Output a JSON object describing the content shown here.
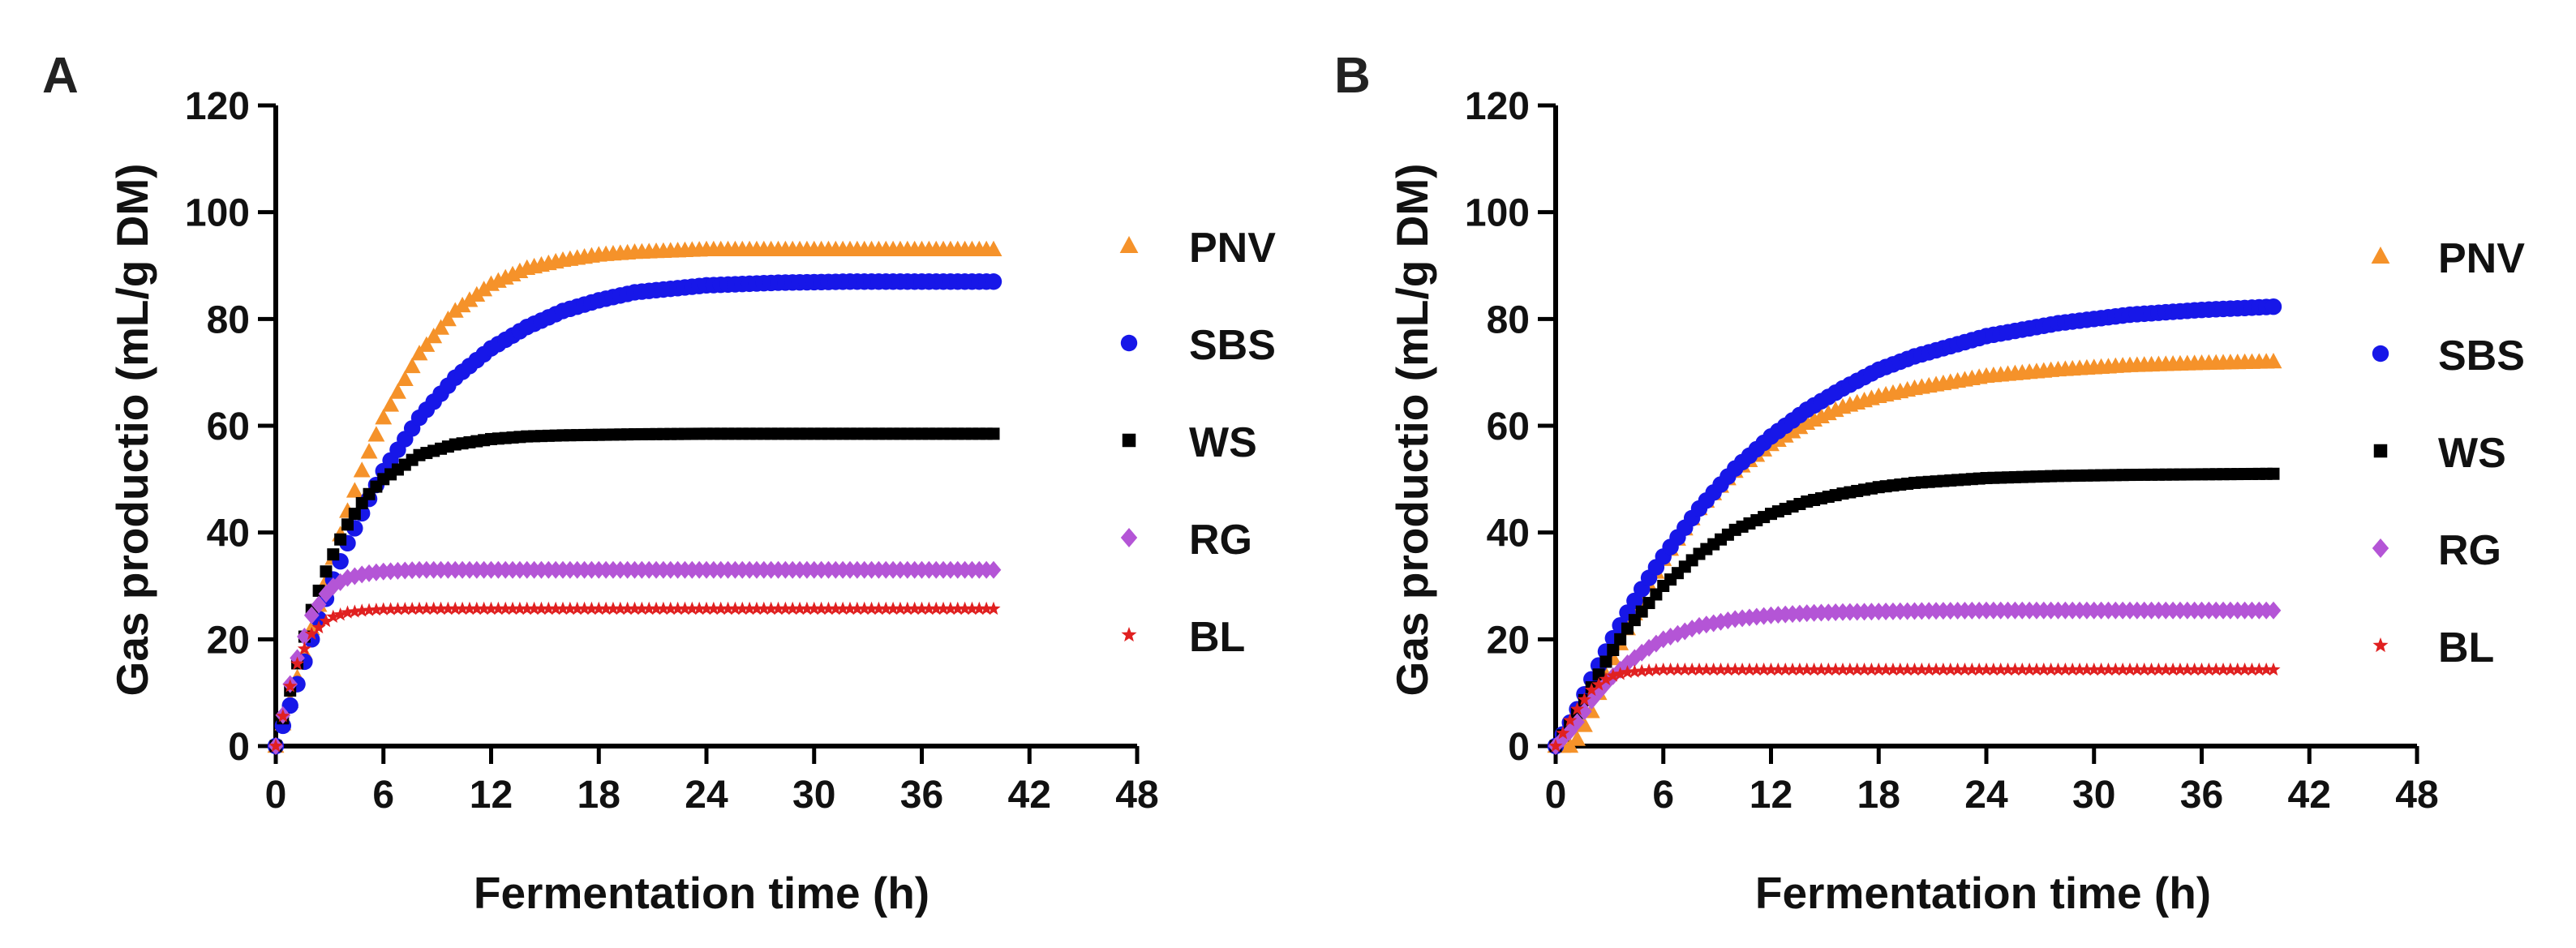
{
  "chart_data": [
    {
      "panel": "A",
      "type": "scatter",
      "xlabel": "Fermentation time (h)",
      "ylabel": "Gas productio (mL/g DM)",
      "xlim": [
        0,
        48
      ],
      "ylim": [
        0,
        120
      ],
      "xticks": [
        0,
        6,
        12,
        18,
        24,
        30,
        36,
        42,
        48
      ],
      "yticks": [
        0,
        20,
        40,
        60,
        80,
        100,
        120
      ],
      "legend_position": "right",
      "x": [
        0,
        1,
        2,
        3,
        4,
        5,
        6,
        8,
        10,
        12,
        14,
        16,
        18,
        20,
        24,
        28,
        32,
        36,
        40
      ],
      "series": [
        {
          "name": "PNV",
          "marker": "triangle",
          "color": "#F5922A",
          "values": [
            0,
            10.5,
            22,
            33,
            44,
            53.5,
            61.5,
            73.5,
            81.5,
            86.5,
            89.5,
            91,
            92,
            92.5,
            93,
            93,
            93,
            93,
            93
          ]
        },
        {
          "name": "SBS",
          "marker": "circle",
          "color": "#1717E8",
          "values": [
            0,
            9.5,
            20,
            29.5,
            38,
            45,
            51.5,
            61.5,
            69,
            74.5,
            78.5,
            81.5,
            83.5,
            85,
            86.3,
            86.8,
            87,
            87,
            87
          ]
        },
        {
          "name": "WS",
          "marker": "square",
          "color": "#000000",
          "values": [
            0,
            13,
            25.5,
            34.5,
            41.5,
            46.5,
            50,
            54.5,
            56.5,
            57.5,
            58,
            58.2,
            58.3,
            58.4,
            58.5,
            58.5,
            58.5,
            58.5,
            58.5
          ]
        },
        {
          "name": "RG",
          "marker": "diamond",
          "color": "#B455D6",
          "values": [
            0,
            14.5,
            24.5,
            29.5,
            31.5,
            32.3,
            32.7,
            33,
            33,
            33,
            33,
            33,
            33,
            33,
            33,
            33,
            33,
            33,
            33
          ]
        },
        {
          "name": "BL",
          "marker": "star",
          "color": "#E02020",
          "values": [
            0,
            14,
            21,
            24,
            25,
            25.4,
            25.6,
            25.7,
            25.7,
            25.7,
            25.7,
            25.7,
            25.7,
            25.7,
            25.7,
            25.7,
            25.7,
            25.7,
            25.7
          ]
        }
      ]
    },
    {
      "panel": "B",
      "type": "scatter",
      "xlabel": "Fermentation time (h)",
      "ylabel": "Gas productio (mL/g DM)",
      "xlim": [
        0,
        48
      ],
      "ylim": [
        0,
        120
      ],
      "xticks": [
        0,
        6,
        12,
        18,
        24,
        30,
        36,
        42,
        48
      ],
      "yticks": [
        0,
        20,
        40,
        60,
        80,
        100,
        120
      ],
      "legend_position": "right",
      "x": [
        0,
        1,
        2,
        3,
        4,
        5,
        6,
        8,
        10,
        12,
        14,
        16,
        18,
        20,
        24,
        28,
        32,
        36,
        40
      ],
      "series": [
        {
          "name": "PNV",
          "marker": "triangle",
          "color": "#F5922A",
          "values": [
            0,
            0,
            6.5,
            15,
            22,
            29,
            35,
            44.5,
            51.5,
            56.5,
            60.5,
            63.5,
            65.5,
            67,
            69.3,
            70.5,
            71.3,
            71.7,
            72
          ]
        },
        {
          "name": "SBS",
          "marker": "circle",
          "color": "#1717E8",
          "values": [
            0,
            5.5,
            12.5,
            19,
            25,
            30.5,
            35.5,
            44.5,
            52,
            58,
            63,
            67,
            70.5,
            73,
            76.8,
            79.2,
            80.8,
            81.7,
            82.3
          ]
        },
        {
          "name": "WS",
          "marker": "square",
          "color": "#000000",
          "values": [
            0,
            5,
            11,
            17,
            22,
            26,
            30,
            36,
            40.5,
            43.5,
            45.8,
            47.3,
            48.5,
            49.3,
            50.2,
            50.6,
            50.8,
            50.9,
            51
          ]
        },
        {
          "name": "RG",
          "marker": "diamond",
          "color": "#B455D6",
          "values": [
            0,
            3.5,
            8.5,
            12.5,
            15.5,
            18,
            20,
            22.5,
            23.8,
            24.5,
            24.9,
            25.1,
            25.2,
            25.3,
            25.4,
            25.4,
            25.4,
            25.4,
            25.4
          ]
        },
        {
          "name": "BL",
          "marker": "star",
          "color": "#E02020",
          "values": [
            0,
            6,
            10.5,
            13,
            13.8,
            14.1,
            14.3,
            14.3,
            14.3,
            14.3,
            14.3,
            14.3,
            14.3,
            14.3,
            14.3,
            14.3,
            14.3,
            14.3,
            14.3
          ]
        }
      ]
    }
  ]
}
